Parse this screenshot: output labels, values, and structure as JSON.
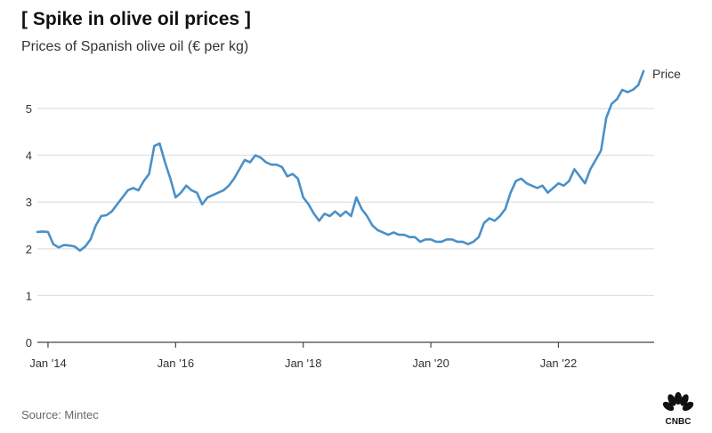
{
  "header": {
    "title": "[ Spike in olive oil prices ]",
    "subtitle": "Prices of Spanish olive oil (€ per kg)"
  },
  "footer": {
    "source": "Source: Mintec",
    "logo_text": "CNBC"
  },
  "colors": {
    "line": "#4a90c8",
    "grid": "#d9d9d9",
    "axis": "#444444"
  },
  "chart_data": {
    "type": "line",
    "title": "[ Spike in olive oil prices ]",
    "subtitle": "Prices of Spanish olive oil (€ per kg)",
    "xlabel": "",
    "ylabel": "",
    "ylim": [
      0,
      5.8
    ],
    "yticks": [
      0,
      1,
      2,
      3,
      4,
      5
    ],
    "xticks": [
      {
        "label": "Jan '14",
        "x": "2014-01"
      },
      {
        "label": "Jan '16",
        "x": "2016-01"
      },
      {
        "label": "Jan '18",
        "x": "2018-01"
      },
      {
        "label": "Jan '20",
        "x": "2020-01"
      },
      {
        "label": "Jan '22",
        "x": "2022-01"
      }
    ],
    "grid": true,
    "legend": "none",
    "series": [
      {
        "name": "Price",
        "points": [
          [
            "2013-11",
            2.36
          ],
          [
            "2013-12",
            2.37
          ],
          [
            "2014-01",
            2.36
          ],
          [
            "2014-02",
            2.1
          ],
          [
            "2014-03",
            2.03
          ],
          [
            "2014-04",
            2.08
          ],
          [
            "2014-05",
            2.07
          ],
          [
            "2014-06",
            2.05
          ],
          [
            "2014-07",
            1.96
          ],
          [
            "2014-08",
            2.05
          ],
          [
            "2014-09",
            2.2
          ],
          [
            "2014-10",
            2.5
          ],
          [
            "2014-11",
            2.7
          ],
          [
            "2014-12",
            2.72
          ],
          [
            "2015-01",
            2.8
          ],
          [
            "2015-02",
            2.95
          ],
          [
            "2015-03",
            3.1
          ],
          [
            "2015-04",
            3.25
          ],
          [
            "2015-05",
            3.3
          ],
          [
            "2015-06",
            3.25
          ],
          [
            "2015-07",
            3.45
          ],
          [
            "2015-08",
            3.6
          ],
          [
            "2015-09",
            4.2
          ],
          [
            "2015-10",
            4.25
          ],
          [
            "2015-11",
            3.85
          ],
          [
            "2015-12",
            3.5
          ],
          [
            "2016-01",
            3.1
          ],
          [
            "2016-02",
            3.2
          ],
          [
            "2016-03",
            3.35
          ],
          [
            "2016-04",
            3.25
          ],
          [
            "2016-05",
            3.2
          ],
          [
            "2016-06",
            2.95
          ],
          [
            "2016-07",
            3.1
          ],
          [
            "2016-08",
            3.15
          ],
          [
            "2016-09",
            3.2
          ],
          [
            "2016-10",
            3.25
          ],
          [
            "2016-11",
            3.35
          ],
          [
            "2016-12",
            3.5
          ],
          [
            "2017-01",
            3.7
          ],
          [
            "2017-02",
            3.9
          ],
          [
            "2017-03",
            3.85
          ],
          [
            "2017-04",
            4.0
          ],
          [
            "2017-05",
            3.95
          ],
          [
            "2017-06",
            3.85
          ],
          [
            "2017-07",
            3.8
          ],
          [
            "2017-08",
            3.8
          ],
          [
            "2017-09",
            3.75
          ],
          [
            "2017-10",
            3.55
          ],
          [
            "2017-11",
            3.6
          ],
          [
            "2017-12",
            3.5
          ],
          [
            "2018-01",
            3.1
          ],
          [
            "2018-02",
            2.95
          ],
          [
            "2018-03",
            2.75
          ],
          [
            "2018-04",
            2.6
          ],
          [
            "2018-05",
            2.75
          ],
          [
            "2018-06",
            2.7
          ],
          [
            "2018-07",
            2.8
          ],
          [
            "2018-08",
            2.7
          ],
          [
            "2018-09",
            2.8
          ],
          [
            "2018-10",
            2.7
          ],
          [
            "2018-11",
            3.1
          ],
          [
            "2018-12",
            2.85
          ],
          [
            "2019-01",
            2.7
          ],
          [
            "2019-02",
            2.5
          ],
          [
            "2019-03",
            2.4
          ],
          [
            "2019-04",
            2.35
          ],
          [
            "2019-05",
            2.3
          ],
          [
            "2019-06",
            2.35
          ],
          [
            "2019-07",
            2.3
          ],
          [
            "2019-08",
            2.3
          ],
          [
            "2019-09",
            2.25
          ],
          [
            "2019-10",
            2.25
          ],
          [
            "2019-11",
            2.15
          ],
          [
            "2019-12",
            2.2
          ],
          [
            "2020-01",
            2.2
          ],
          [
            "2020-02",
            2.15
          ],
          [
            "2020-03",
            2.15
          ],
          [
            "2020-04",
            2.2
          ],
          [
            "2020-05",
            2.2
          ],
          [
            "2020-06",
            2.15
          ],
          [
            "2020-07",
            2.15
          ],
          [
            "2020-08",
            2.1
          ],
          [
            "2020-09",
            2.15
          ],
          [
            "2020-10",
            2.25
          ],
          [
            "2020-11",
            2.55
          ],
          [
            "2020-12",
            2.65
          ],
          [
            "2021-01",
            2.6
          ],
          [
            "2021-02",
            2.7
          ],
          [
            "2021-03",
            2.85
          ],
          [
            "2021-04",
            3.2
          ],
          [
            "2021-05",
            3.45
          ],
          [
            "2021-06",
            3.5
          ],
          [
            "2021-07",
            3.4
          ],
          [
            "2021-08",
            3.35
          ],
          [
            "2021-09",
            3.3
          ],
          [
            "2021-10",
            3.35
          ],
          [
            "2021-11",
            3.2
          ],
          [
            "2021-12",
            3.3
          ],
          [
            "2022-01",
            3.4
          ],
          [
            "2022-02",
            3.35
          ],
          [
            "2022-03",
            3.45
          ],
          [
            "2022-04",
            3.7
          ],
          [
            "2022-05",
            3.55
          ],
          [
            "2022-06",
            3.4
          ],
          [
            "2022-07",
            3.7
          ],
          [
            "2022-08",
            3.9
          ],
          [
            "2022-09",
            4.1
          ],
          [
            "2022-10",
            4.8
          ],
          [
            "2022-11",
            5.1
          ],
          [
            "2022-12",
            5.2
          ],
          [
            "2023-01",
            5.4
          ],
          [
            "2023-02",
            5.35
          ],
          [
            "2023-03",
            5.4
          ],
          [
            "2023-04",
            5.5
          ],
          [
            "2023-05",
            5.8
          ]
        ]
      }
    ]
  }
}
